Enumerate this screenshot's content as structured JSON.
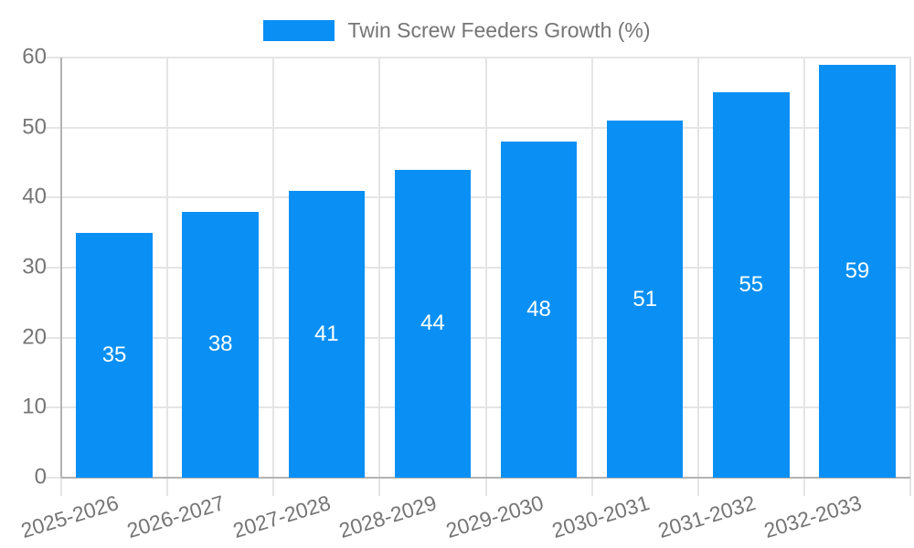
{
  "chart_data": {
    "type": "bar",
    "title": "Twin Screw Feeders Growth (%)",
    "categories": [
      "2025-2026",
      "2026-2027",
      "2027-2028",
      "2028-2029",
      "2029-2030",
      "2030-2031",
      "2031-2032",
      "2032-2033"
    ],
    "values": [
      35,
      38,
      41,
      44,
      48,
      51,
      55,
      59
    ],
    "xlabel": "",
    "ylabel": "",
    "ylim": [
      0,
      60
    ],
    "y_ticks": [
      0,
      10,
      20,
      30,
      40,
      50,
      60
    ],
    "grid": true,
    "legend_position": "top-center",
    "value_labels": "centered inside bars",
    "colors": {
      "bar": "#0a90f5",
      "value_label_text": "#ffffff",
      "axis_text": "#757575",
      "axis_line": "#b3b3b3",
      "gridline": "#e5e5e5",
      "background": "#ffffff"
    }
  }
}
